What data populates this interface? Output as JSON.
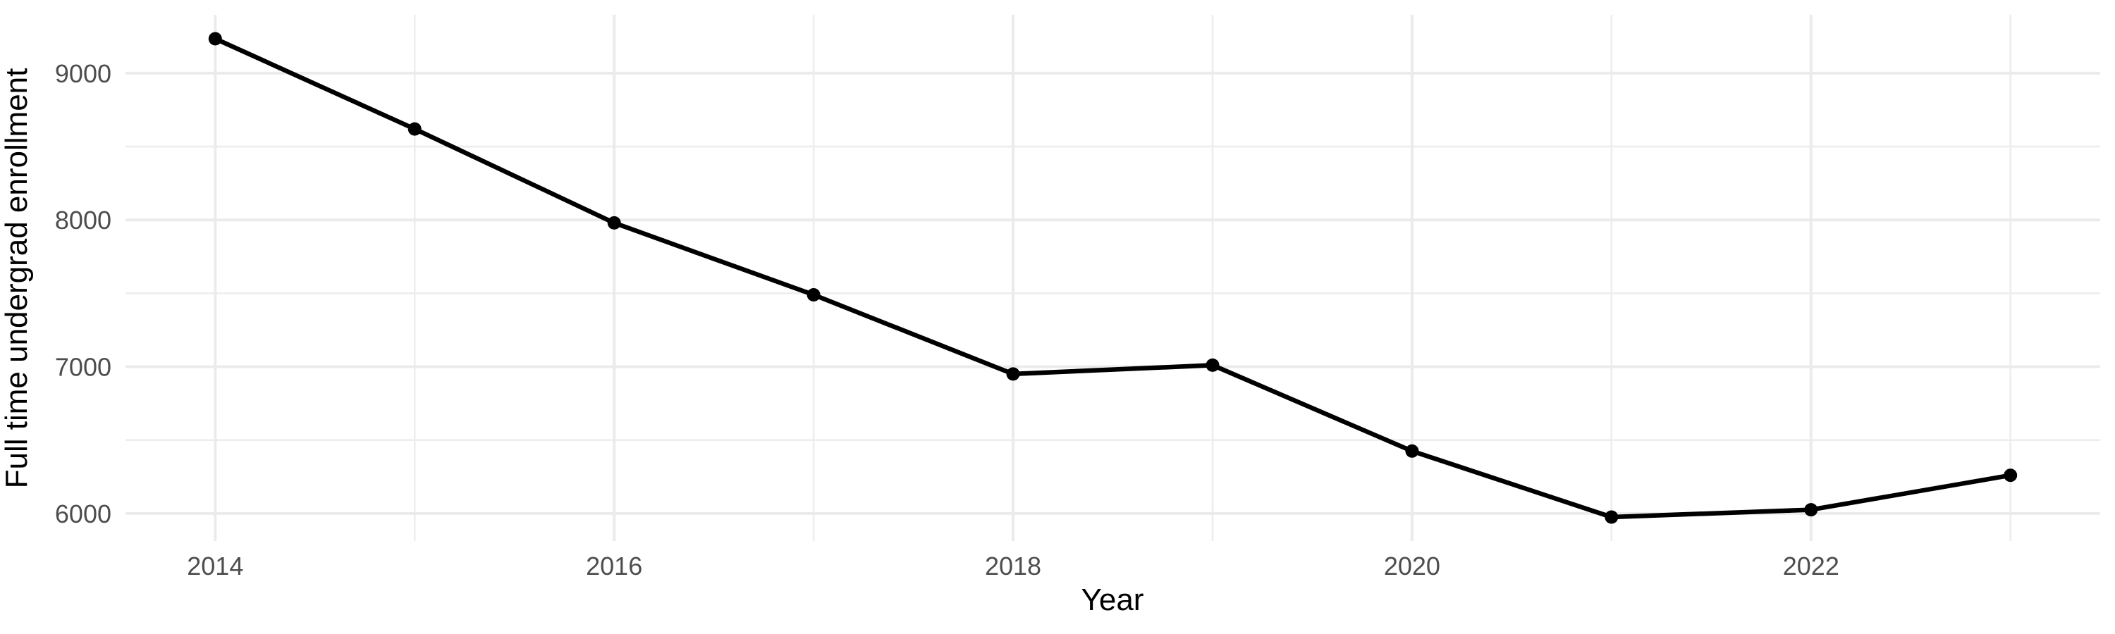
{
  "chart_data": {
    "type": "line",
    "xlabel": "Year",
    "ylabel": "Full time undergrad enrollment",
    "x": [
      2014,
      2015,
      2016,
      2017,
      2018,
      2019,
      2020,
      2021,
      2022,
      2023
    ],
    "values": [
      9235,
      8620,
      7980,
      7490,
      6950,
      7010,
      6425,
      5975,
      6025,
      6260
    ],
    "series_points": [
      {
        "year": 2014,
        "enrollment": 9235
      },
      {
        "year": 2015,
        "enrollment": 8620
      },
      {
        "year": 2016,
        "enrollment": 7980
      },
      {
        "year": 2017,
        "enrollment": 7490
      },
      {
        "year": 2018,
        "enrollment": 6950
      },
      {
        "year": 2019,
        "enrollment": 7010
      },
      {
        "year": 2020,
        "enrollment": 6425
      },
      {
        "year": 2021,
        "enrollment": 5975
      },
      {
        "year": 2022,
        "enrollment": 6025
      },
      {
        "year": 2023,
        "enrollment": 6260
      }
    ],
    "xlim": [
      2013.55,
      2023.45
    ],
    "ylim": [
      5812,
      9398
    ],
    "x_major_ticks": [
      2014,
      2016,
      2018,
      2020,
      2022
    ],
    "x_minor_gridlines": [
      2015,
      2017,
      2019,
      2021,
      2023
    ],
    "y_major_ticks": [
      6000,
      7000,
      8000,
      9000
    ],
    "y_minor_gridlines": [
      6500,
      7500,
      8500
    ],
    "grid": "major and minor, no axis lines, no tick marks",
    "legend": "none",
    "colors": {
      "line": "#000000",
      "point": "#000000",
      "grid_major": "#EBEBEB",
      "grid_minor": "#EDEDED",
      "tick_label": "#4D4D4D",
      "axis_title": "#000000",
      "background": "#FFFFFF"
    }
  }
}
